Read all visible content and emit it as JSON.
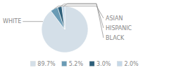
{
  "chart_data": {
    "type": "pie",
    "categories": [
      "WHITE",
      "ASIAN",
      "HISPANIC",
      "BLACK"
    ],
    "values": [
      89.7,
      5.2,
      3.0,
      2.0
    ],
    "value_labels": [
      "89.7%",
      "5.2%",
      "3.0%",
      "2.0%"
    ],
    "colors": [
      "#d4dfe8",
      "#6a9bb5",
      "#2e5f7a",
      "#c5d8e8"
    ],
    "legend": "bottom"
  }
}
